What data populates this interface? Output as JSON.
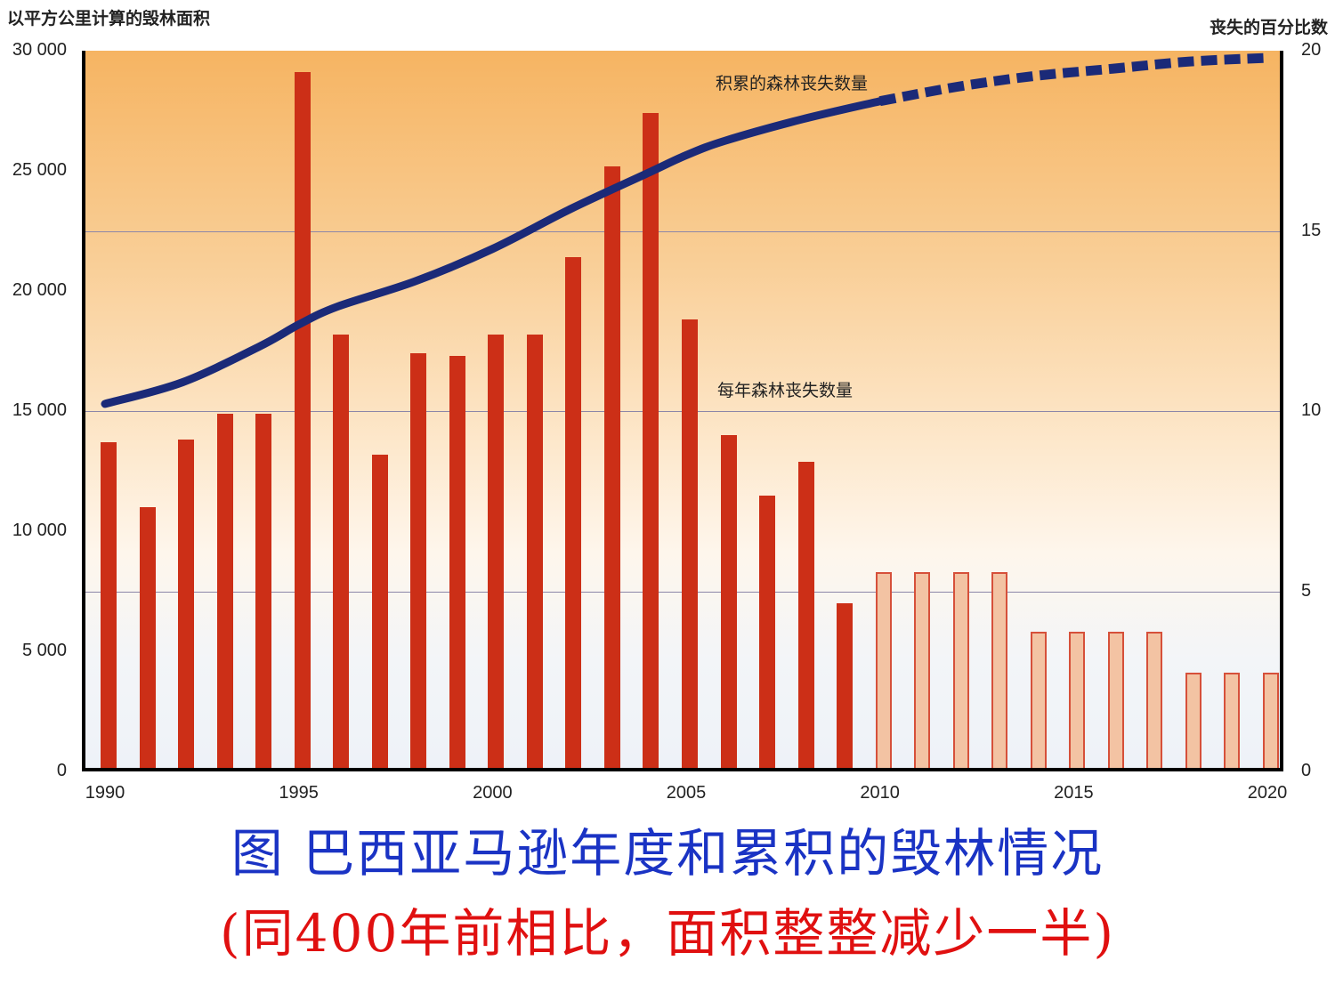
{
  "chart_data": {
    "type": "bar",
    "title": "巴西亚马逊年度和累积的毁林情况",
    "ylabel": "以平方公里计算的毁林面积",
    "ylabel_right": "丧失的百分比数",
    "xlabel": "",
    "ylim": [
      0,
      30000
    ],
    "ylim_right": [
      0,
      20
    ],
    "grid": true,
    "legend_position": "inline",
    "left_ticks": [
      "30 000",
      "25 000",
      "20 000",
      "15 000",
      "10 000",
      "5 000",
      "0"
    ],
    "right_ticks": [
      "20",
      "15",
      "10",
      "5",
      "0"
    ],
    "x_ticks": [
      "1990",
      "1995",
      "2000",
      "2005",
      "2010",
      "2015",
      "2020"
    ],
    "categories": [
      1990,
      1991,
      1992,
      1993,
      1994,
      1995,
      1996,
      1997,
      1998,
      1999,
      2000,
      2001,
      2002,
      2003,
      2004,
      2005,
      2006,
      2007,
      2008,
      2009,
      2010,
      2011,
      2012,
      2013,
      2014,
      2015,
      2016,
      2017,
      2018,
      2019,
      2020
    ],
    "series": [
      {
        "name": "每年森林丧失数量",
        "type": "bar",
        "axis": "left",
        "values": [
          13700,
          11000,
          13800,
          14900,
          14900,
          29100,
          18200,
          13200,
          17400,
          17300,
          18200,
          18200,
          21400,
          25200,
          27400,
          18800,
          14000,
          11500,
          12900,
          7000,
          8300,
          8300,
          8300,
          8300,
          5800,
          5800,
          5800,
          5800,
          4100,
          4100,
          4100
        ],
        "projected_from": 2010,
        "color": "#cc2f17",
        "projected_color": "#f3c3a3"
      },
      {
        "name": "积累的森林丧失数量",
        "type": "line",
        "axis": "right",
        "x": [
          1990,
          1992,
          1994,
          1995,
          1996,
          1998,
          2000,
          2002,
          2004,
          2005,
          2006,
          2008,
          2010,
          2012,
          2014,
          2016,
          2018,
          2020
        ],
        "values": [
          10.2,
          10.8,
          11.8,
          12.4,
          12.9,
          13.6,
          14.5,
          15.6,
          16.6,
          17.1,
          17.5,
          18.1,
          18.6,
          19.0,
          19.3,
          19.5,
          19.7,
          19.8
        ],
        "dashed_from": 2010,
        "color": "#1b2a78"
      }
    ],
    "annotations": [
      "积累的森林丧失数量",
      "每年森林丧失数量"
    ]
  },
  "labels": {
    "ylabel_left": "以平方公里计算的毁林面积",
    "ylabel_right": "丧失的百分比数",
    "series_cumulative": "积累的森林丧失数量",
    "series_annual": "每年森林丧失数量"
  },
  "caption": {
    "line1": "图 巴西亚马逊年度和累积的毁林情况",
    "line2": "(同400年前相比，面积整整减少一半)"
  }
}
